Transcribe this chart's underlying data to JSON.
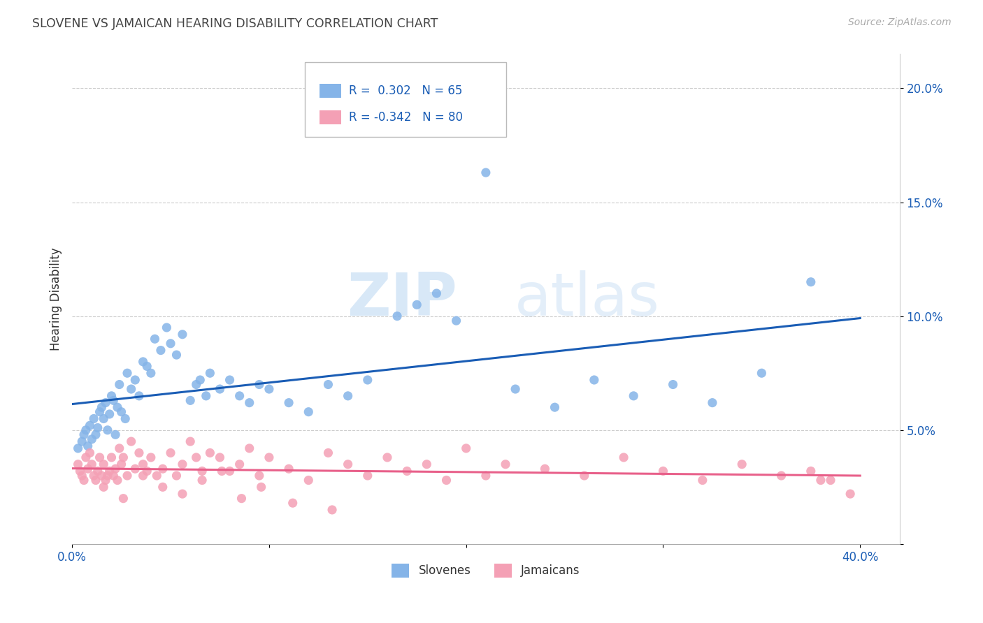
{
  "title": "SLOVENE VS JAMAICAN HEARING DISABILITY CORRELATION CHART",
  "source": "Source: ZipAtlas.com",
  "ylabel": "Hearing Disability",
  "xlim": [
    0.0,
    0.42
  ],
  "ylim": [
    0.0,
    0.215
  ],
  "xticks": [
    0.0,
    0.1,
    0.2,
    0.3,
    0.4
  ],
  "xticklabels": [
    "0.0%",
    "",
    "",
    "",
    "40.0%"
  ],
  "yticks": [
    0.0,
    0.05,
    0.1,
    0.15,
    0.2
  ],
  "yticklabels": [
    "",
    "5.0%",
    "10.0%",
    "15.0%",
    "20.0%"
  ],
  "slovene_color": "#85b4e8",
  "jamaican_color": "#f4a0b5",
  "slovene_line_color": "#1a5db5",
  "jamaican_line_color": "#e8608a",
  "R_slovene": 0.302,
  "N_slovene": 65,
  "R_jamaican": -0.342,
  "N_jamaican": 80,
  "watermark_zip": "ZIP",
  "watermark_atlas": "atlas",
  "background_color": "#ffffff",
  "slovene_x": [
    0.003,
    0.005,
    0.006,
    0.007,
    0.008,
    0.009,
    0.01,
    0.011,
    0.012,
    0.013,
    0.014,
    0.015,
    0.016,
    0.017,
    0.018,
    0.019,
    0.02,
    0.021,
    0.022,
    0.023,
    0.024,
    0.025,
    0.027,
    0.028,
    0.03,
    0.032,
    0.034,
    0.036,
    0.038,
    0.04,
    0.042,
    0.045,
    0.048,
    0.05,
    0.053,
    0.056,
    0.06,
    0.063,
    0.065,
    0.068,
    0.07,
    0.075,
    0.08,
    0.085,
    0.09,
    0.095,
    0.1,
    0.11,
    0.12,
    0.13,
    0.14,
    0.15,
    0.165,
    0.175,
    0.185,
    0.195,
    0.21,
    0.225,
    0.245,
    0.265,
    0.285,
    0.305,
    0.325,
    0.35,
    0.375
  ],
  "slovene_y": [
    0.042,
    0.045,
    0.048,
    0.05,
    0.043,
    0.052,
    0.046,
    0.055,
    0.048,
    0.051,
    0.058,
    0.06,
    0.055,
    0.062,
    0.05,
    0.057,
    0.065,
    0.063,
    0.048,
    0.06,
    0.07,
    0.058,
    0.055,
    0.075,
    0.068,
    0.072,
    0.065,
    0.08,
    0.078,
    0.075,
    0.09,
    0.085,
    0.095,
    0.088,
    0.083,
    0.092,
    0.063,
    0.07,
    0.072,
    0.065,
    0.075,
    0.068,
    0.072,
    0.065,
    0.062,
    0.07,
    0.068,
    0.062,
    0.058,
    0.07,
    0.065,
    0.072,
    0.1,
    0.105,
    0.11,
    0.098,
    0.163,
    0.068,
    0.06,
    0.072,
    0.065,
    0.07,
    0.062,
    0.075,
    0.115
  ],
  "jamaican_x": [
    0.003,
    0.004,
    0.005,
    0.006,
    0.007,
    0.008,
    0.009,
    0.01,
    0.011,
    0.012,
    0.013,
    0.014,
    0.015,
    0.016,
    0.017,
    0.018,
    0.019,
    0.02,
    0.021,
    0.022,
    0.023,
    0.024,
    0.025,
    0.026,
    0.028,
    0.03,
    0.032,
    0.034,
    0.036,
    0.038,
    0.04,
    0.043,
    0.046,
    0.05,
    0.053,
    0.056,
    0.06,
    0.063,
    0.066,
    0.07,
    0.075,
    0.08,
    0.085,
    0.09,
    0.095,
    0.1,
    0.11,
    0.12,
    0.13,
    0.14,
    0.15,
    0.16,
    0.17,
    0.18,
    0.19,
    0.2,
    0.21,
    0.22,
    0.24,
    0.26,
    0.28,
    0.3,
    0.32,
    0.34,
    0.36,
    0.375,
    0.385,
    0.395,
    0.016,
    0.026,
    0.036,
    0.046,
    0.056,
    0.066,
    0.076,
    0.086,
    0.096,
    0.112,
    0.132,
    0.38
  ],
  "jamaican_y": [
    0.035,
    0.032,
    0.03,
    0.028,
    0.038,
    0.033,
    0.04,
    0.035,
    0.03,
    0.028,
    0.032,
    0.038,
    0.03,
    0.035,
    0.028,
    0.03,
    0.032,
    0.038,
    0.03,
    0.033,
    0.028,
    0.042,
    0.035,
    0.038,
    0.03,
    0.045,
    0.033,
    0.04,
    0.035,
    0.032,
    0.038,
    0.03,
    0.033,
    0.04,
    0.03,
    0.035,
    0.045,
    0.038,
    0.032,
    0.04,
    0.038,
    0.032,
    0.035,
    0.042,
    0.03,
    0.038,
    0.033,
    0.028,
    0.04,
    0.035,
    0.03,
    0.038,
    0.032,
    0.035,
    0.028,
    0.042,
    0.03,
    0.035,
    0.033,
    0.03,
    0.038,
    0.032,
    0.028,
    0.035,
    0.03,
    0.032,
    0.028,
    0.022,
    0.025,
    0.02,
    0.03,
    0.025,
    0.022,
    0.028,
    0.032,
    0.02,
    0.025,
    0.018,
    0.015,
    0.028
  ]
}
